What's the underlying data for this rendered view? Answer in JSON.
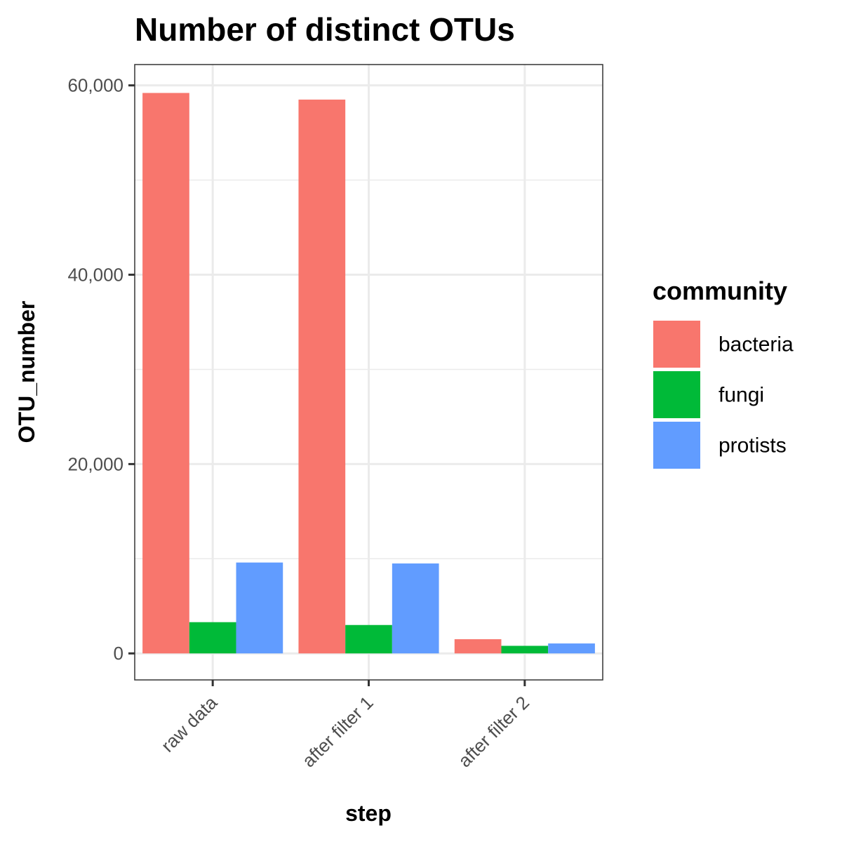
{
  "chart_data": {
    "type": "bar",
    "title": "Number of distinct OTUs",
    "xlabel": "step",
    "ylabel": "OTU_number",
    "categories": [
      "raw data",
      "after filter 1",
      "after filter 2"
    ],
    "series": [
      {
        "name": "bacteria",
        "color": "#F8766D",
        "values": [
          59200,
          58500,
          1500
        ]
      },
      {
        "name": "fungi",
        "color": "#00BA38",
        "values": [
          3300,
          3000,
          800
        ]
      },
      {
        "name": "protists",
        "color": "#619CFF",
        "values": [
          9600,
          9500,
          1050
        ]
      }
    ],
    "ylim": [
      -2800,
      62200
    ],
    "y_ticks": [
      0,
      20000,
      40000,
      60000
    ],
    "y_tick_labels": [
      "0",
      "20,000",
      "40,000",
      "60,000"
    ],
    "grid": true,
    "legend": {
      "title": "community",
      "position": "right"
    }
  }
}
